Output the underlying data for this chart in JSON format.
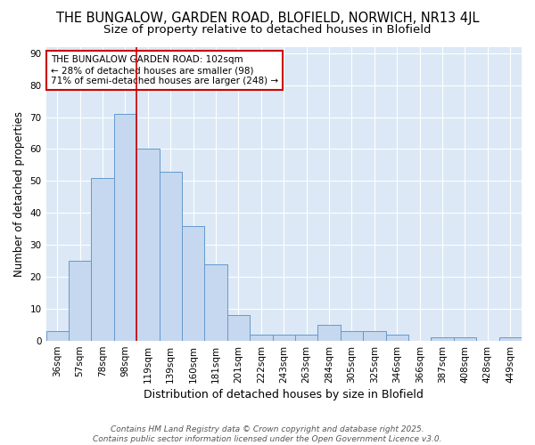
{
  "title1": "THE BUNGALOW, GARDEN ROAD, BLOFIELD, NORWICH, NR13 4JL",
  "title2": "Size of property relative to detached houses in Blofield",
  "xlabel": "Distribution of detached houses by size in Blofield",
  "ylabel": "Number of detached properties",
  "categories": [
    "36sqm",
    "57sqm",
    "78sqm",
    "98sqm",
    "119sqm",
    "139sqm",
    "160sqm",
    "181sqm",
    "201sqm",
    "222sqm",
    "243sqm",
    "263sqm",
    "284sqm",
    "305sqm",
    "325sqm",
    "346sqm",
    "366sqm",
    "387sqm",
    "408sqm",
    "428sqm",
    "449sqm"
  ],
  "values": [
    3,
    25,
    51,
    71,
    60,
    53,
    36,
    24,
    8,
    2,
    2,
    2,
    5,
    3,
    3,
    2,
    0,
    1,
    1,
    0,
    1
  ],
  "bar_color": "#c5d8f0",
  "bar_edge_color": "#6699cc",
  "plot_bg_color": "#dce8f5",
  "fig_bg_color": "#ffffff",
  "grid_color": "#ffffff",
  "vline_color": "#cc0000",
  "vline_x_index": 3.5,
  "annotation_text": "THE BUNGALOW GARDEN ROAD: 102sqm\n← 28% of detached houses are smaller (98)\n71% of semi-detached houses are larger (248) →",
  "annotation_box_color": "#ffffff",
  "annotation_box_edge": "#cc0000",
  "footer_text": "Contains HM Land Registry data © Crown copyright and database right 2025.\nContains public sector information licensed under the Open Government Licence v3.0.",
  "ylim": [
    0,
    92
  ],
  "yticks": [
    0,
    10,
    20,
    30,
    40,
    50,
    60,
    70,
    80,
    90
  ],
  "title1_fontsize": 10.5,
  "title2_fontsize": 9.5,
  "xlabel_fontsize": 9,
  "ylabel_fontsize": 8.5,
  "tick_fontsize": 7.5,
  "annotation_fontsize": 7.5,
  "footer_fontsize": 6.5
}
